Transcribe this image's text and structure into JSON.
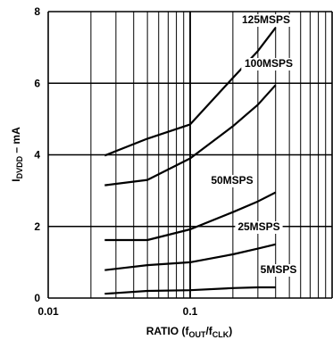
{
  "chart_data": {
    "type": "line",
    "xscale": "log",
    "xlim": [
      0.01,
      1
    ],
    "ylim": [
      0,
      8
    ],
    "x_ticks": [
      {
        "value": 0.01,
        "label": "0.01"
      },
      {
        "value": 0.1,
        "label": "0.1"
      }
    ],
    "y_ticks": [
      {
        "value": 0,
        "label": "0"
      },
      {
        "value": 2,
        "label": "2"
      },
      {
        "value": 4,
        "label": "4"
      },
      {
        "value": 6,
        "label": "6"
      },
      {
        "value": 8,
        "label": "8"
      }
    ],
    "xlabel": {
      "main": "RATIO (f",
      "sub1": "OUT",
      "mid": "/f",
      "sub2": "CLK",
      "end": ")"
    },
    "ylabel": {
      "main": "I",
      "sub": "DVDD",
      "rest": " – mA"
    },
    "grid": true,
    "line_color": "#000000",
    "series": [
      {
        "name": "125MSPS",
        "x": [
          0.025,
          0.05,
          0.1,
          0.2,
          0.3,
          0.4
        ],
        "y": [
          3.98,
          4.45,
          4.85,
          6.15,
          6.9,
          7.55
        ]
      },
      {
        "name": "100MSPS",
        "x": [
          0.025,
          0.05,
          0.1,
          0.2,
          0.3,
          0.4
        ],
        "y": [
          3.15,
          3.3,
          3.9,
          4.8,
          5.4,
          5.95
        ]
      },
      {
        "name": "50MSPS",
        "x": [
          0.025,
          0.05,
          0.1,
          0.2,
          0.3,
          0.4
        ],
        "y": [
          1.62,
          1.62,
          1.92,
          2.4,
          2.7,
          2.95
        ]
      },
      {
        "name": "25MSPS",
        "x": [
          0.025,
          0.05,
          0.1,
          0.2,
          0.3,
          0.4
        ],
        "y": [
          0.78,
          0.92,
          1.0,
          1.22,
          1.38,
          1.5
        ]
      },
      {
        "name": "5MSPS",
        "x": [
          0.025,
          0.05,
          0.1,
          0.2,
          0.3,
          0.4
        ],
        "y": [
          0.12,
          0.2,
          0.22,
          0.28,
          0.3,
          0.3
        ]
      }
    ]
  }
}
